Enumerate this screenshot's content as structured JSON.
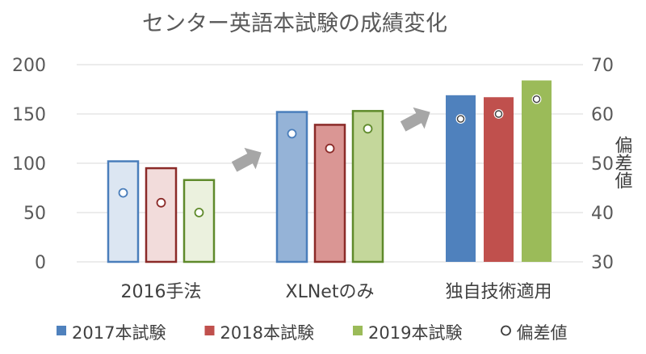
{
  "chart_data": {
    "type": "bar",
    "title": "センター英語本試験の成績変化",
    "categories": [
      "2016手法",
      "XLNetのみ",
      "独自技術適用"
    ],
    "series": [
      {
        "name": "2017本試験",
        "values": [
          102,
          152,
          169
        ],
        "deviation": [
          44,
          56,
          59
        ],
        "fill": "#dce6f2",
        "fill_solid": "#4f81bd",
        "stroke": "#4a7ebb"
      },
      {
        "name": "2018本試験",
        "values": [
          95,
          139,
          167
        ],
        "deviation": [
          42,
          53,
          60
        ],
        "fill": "#f2dcdb",
        "fill_solid": "#c0504d",
        "stroke": "#8b2a28"
      },
      {
        "name": "2019本試験",
        "values": [
          83,
          153,
          184
        ],
        "deviation": [
          40,
          57,
          63
        ],
        "fill": "#ebf1de",
        "fill_solid": "#9bbb59",
        "stroke": "#5f8a2b"
      }
    ],
    "category_fill_styles": [
      "light",
      "medium",
      "solid"
    ],
    "medium_fills": [
      "#95b3d7",
      "#da9694",
      "#c4d79b"
    ],
    "marker_series_name": "偏差値",
    "ylim": [
      0,
      200
    ],
    "yticks": [
      "0",
      "50",
      "100",
      "150",
      "200"
    ],
    "y2lim": [
      30,
      70
    ],
    "y2ticks": [
      "30",
      "40",
      "50",
      "60",
      "70"
    ],
    "y2label": "偏差値",
    "xlabel": "",
    "ylabel": "",
    "grid": true,
    "legend_position": "bottom"
  }
}
